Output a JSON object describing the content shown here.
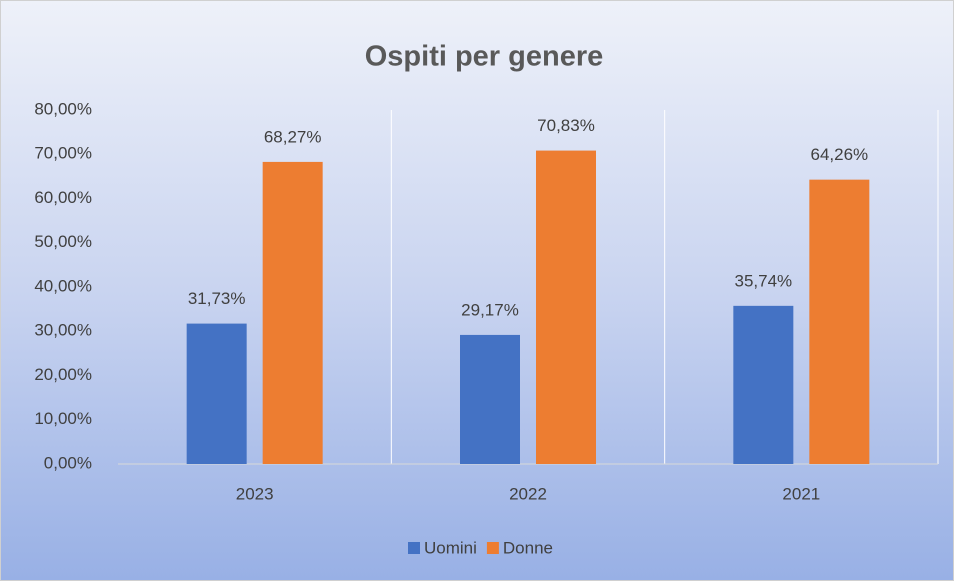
{
  "chart_data": {
    "type": "bar",
    "title": "Ospiti per genere",
    "categories": [
      "2023",
      "2022",
      "2021"
    ],
    "series": [
      {
        "name": "Uomini",
        "color": "#4472c4",
        "values": [
          31.73,
          29.17,
          35.74
        ],
        "value_labels": [
          "31,73%",
          "29,17%",
          "35,74%"
        ]
      },
      {
        "name": "Donne",
        "color": "#ed7d31",
        "values": [
          68.27,
          70.83,
          64.26
        ],
        "value_labels": [
          "68,27%",
          "70,83%",
          "64,26%"
        ]
      }
    ],
    "ylim": [
      0,
      80
    ],
    "yticks": [
      {
        "value": 0,
        "label": "0,00%"
      },
      {
        "value": 10,
        "label": "10,00%"
      },
      {
        "value": 20,
        "label": "20,00%"
      },
      {
        "value": 30,
        "label": "30,00%"
      },
      {
        "value": 40,
        "label": "40,00%"
      },
      {
        "value": 50,
        "label": "50,00%"
      },
      {
        "value": 60,
        "label": "60,00%"
      },
      {
        "value": 70,
        "label": "70,00%"
      },
      {
        "value": 80,
        "label": "80,00%"
      }
    ],
    "legend": "bottom"
  }
}
